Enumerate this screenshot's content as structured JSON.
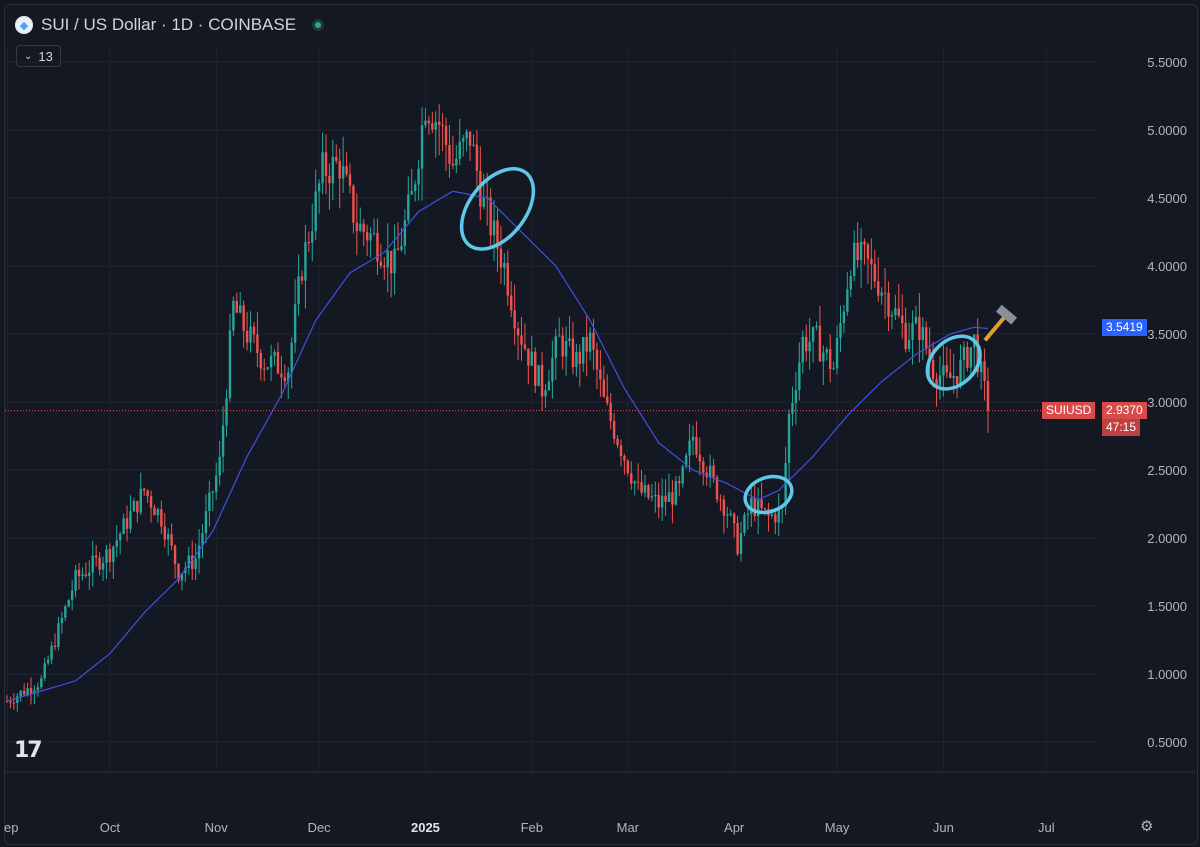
{
  "header": {
    "title": "SUI / US Dollar · 1D · COINBASE",
    "indicator_count": "13"
  },
  "colors": {
    "background": "#131722",
    "up": "#26a69a",
    "down": "#ef5350",
    "ma": "#3f51e0",
    "circle": "#5ec8e8",
    "price_line": "#ef5350",
    "ma_tag": "#2962ff"
  },
  "tags": {
    "ma_value": "3.5419",
    "symbol": "SUIUSD",
    "last_price": "2.9370",
    "countdown": "47:15"
  },
  "chart_data": {
    "type": "candlestick",
    "ylim": [
      0.3,
      5.75
    ],
    "y_ticks": [
      "0.5000",
      "1.0000",
      "1.5000",
      "2.0000",
      "2.5000",
      "3.0000",
      "3.5000",
      "4.0000",
      "4.5000",
      "5.0000",
      "5.5000"
    ],
    "x_ticks": [
      "ep",
      "Oct",
      "Nov",
      "Dec",
      "2025",
      "Feb",
      "Mar",
      "Apr",
      "May",
      "Jun",
      "Jul"
    ],
    "x_tick_days": [
      0,
      30,
      61,
      91,
      122,
      153,
      181,
      212,
      242,
      273,
      303
    ],
    "last_price": 2.937,
    "ma_last": 3.5419,
    "series_anchors": [
      [
        0,
        0.8
      ],
      [
        10,
        0.95
      ],
      [
        20,
        1.7
      ],
      [
        30,
        1.9
      ],
      [
        40,
        2.35
      ],
      [
        45,
        2.15
      ],
      [
        50,
        1.75
      ],
      [
        55,
        1.85
      ],
      [
        62,
        2.55
      ],
      [
        66,
        3.7
      ],
      [
        70,
        3.5
      ],
      [
        75,
        3.3
      ],
      [
        82,
        3.25
      ],
      [
        86,
        4.0
      ],
      [
        92,
        4.7
      ],
      [
        97,
        4.75
      ],
      [
        102,
        4.3
      ],
      [
        107,
        4.2
      ],
      [
        113,
        4.0
      ],
      [
        118,
        4.5
      ],
      [
        122,
        5.2
      ],
      [
        126,
        5.05
      ],
      [
        130,
        4.75
      ],
      [
        135,
        4.95
      ],
      [
        139,
        4.45
      ],
      [
        145,
        4.0
      ],
      [
        149,
        3.55
      ],
      [
        152,
        3.35
      ],
      [
        156,
        3.1
      ],
      [
        161,
        3.45
      ],
      [
        166,
        3.3
      ],
      [
        170,
        3.45
      ],
      [
        174,
        3.0
      ],
      [
        180,
        2.6
      ],
      [
        184,
        2.35
      ],
      [
        190,
        2.25
      ],
      [
        196,
        2.35
      ],
      [
        200,
        2.75
      ],
      [
        206,
        2.4
      ],
      [
        210,
        2.2
      ],
      [
        213,
        1.95
      ],
      [
        217,
        2.25
      ],
      [
        222,
        2.15
      ],
      [
        226,
        2.2
      ],
      [
        228,
        2.9
      ],
      [
        232,
        3.45
      ],
      [
        236,
        3.45
      ],
      [
        241,
        3.25
      ],
      [
        246,
        4.05
      ],
      [
        250,
        4.05
      ],
      [
        256,
        3.8
      ],
      [
        262,
        3.5
      ],
      [
        266,
        3.55
      ],
      [
        270,
        3.25
      ],
      [
        274,
        3.15
      ],
      [
        278,
        3.25
      ],
      [
        282,
        3.45
      ],
      [
        286,
        2.94
      ]
    ],
    "ma_anchors": [
      [
        0,
        0.8
      ],
      [
        20,
        0.95
      ],
      [
        30,
        1.15
      ],
      [
        40,
        1.45
      ],
      [
        50,
        1.7
      ],
      [
        60,
        2.05
      ],
      [
        70,
        2.6
      ],
      [
        80,
        3.05
      ],
      [
        90,
        3.6
      ],
      [
        100,
        3.95
      ],
      [
        110,
        4.1
      ],
      [
        120,
        4.4
      ],
      [
        130,
        4.55
      ],
      [
        140,
        4.5
      ],
      [
        150,
        4.25
      ],
      [
        160,
        4.0
      ],
      [
        170,
        3.6
      ],
      [
        180,
        3.1
      ],
      [
        190,
        2.7
      ],
      [
        200,
        2.5
      ],
      [
        210,
        2.4
      ],
      [
        219,
        2.28
      ],
      [
        225,
        2.35
      ],
      [
        235,
        2.6
      ],
      [
        245,
        2.9
      ],
      [
        255,
        3.15
      ],
      [
        265,
        3.35
      ],
      [
        275,
        3.5
      ],
      [
        282,
        3.55
      ],
      [
        286,
        3.54
      ]
    ],
    "annotations": [
      {
        "kind": "ellipse",
        "day": 143,
        "value": 4.42,
        "rx": 28,
        "ry": 46,
        "rotate": 38
      },
      {
        "kind": "ellipse",
        "day": 222,
        "value": 2.32,
        "rx": 24,
        "ry": 17,
        "rotate": -20
      },
      {
        "kind": "ellipse",
        "day": 276,
        "value": 3.29,
        "rx": 22,
        "ry": 30,
        "rotate": 45
      },
      {
        "kind": "hammer-icon",
        "day": 290,
        "value": 3.6
      }
    ]
  }
}
